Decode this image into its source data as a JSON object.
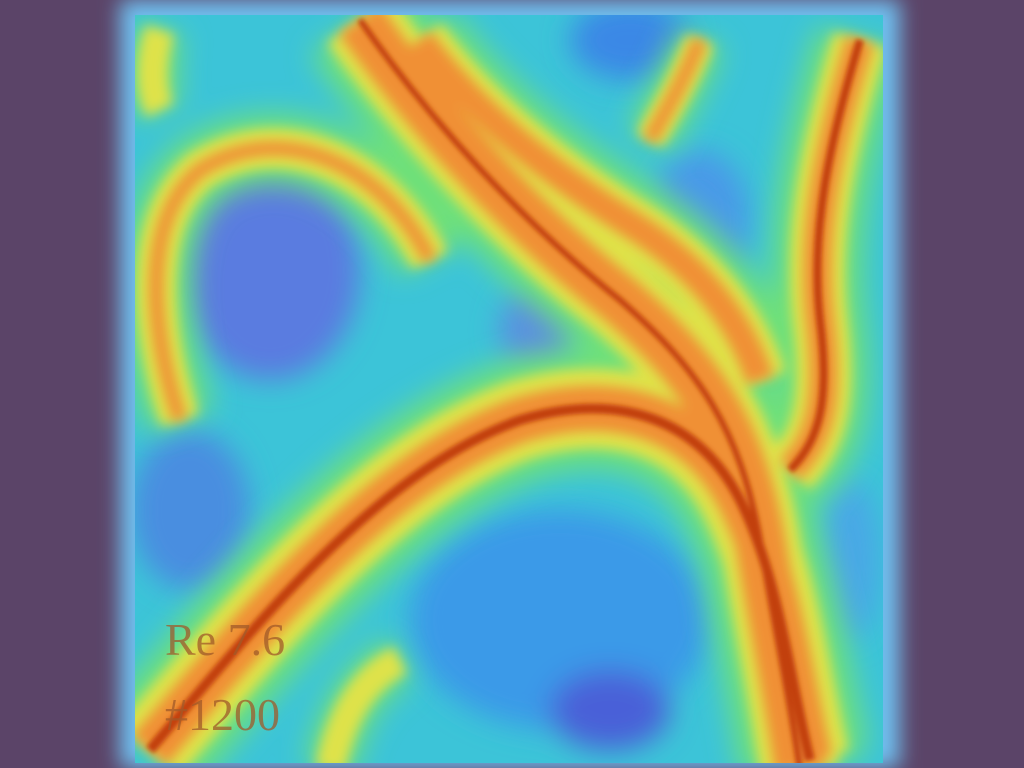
{
  "overlay": {
    "reynolds": "Re 7.6",
    "frame": "#1200"
  }
}
